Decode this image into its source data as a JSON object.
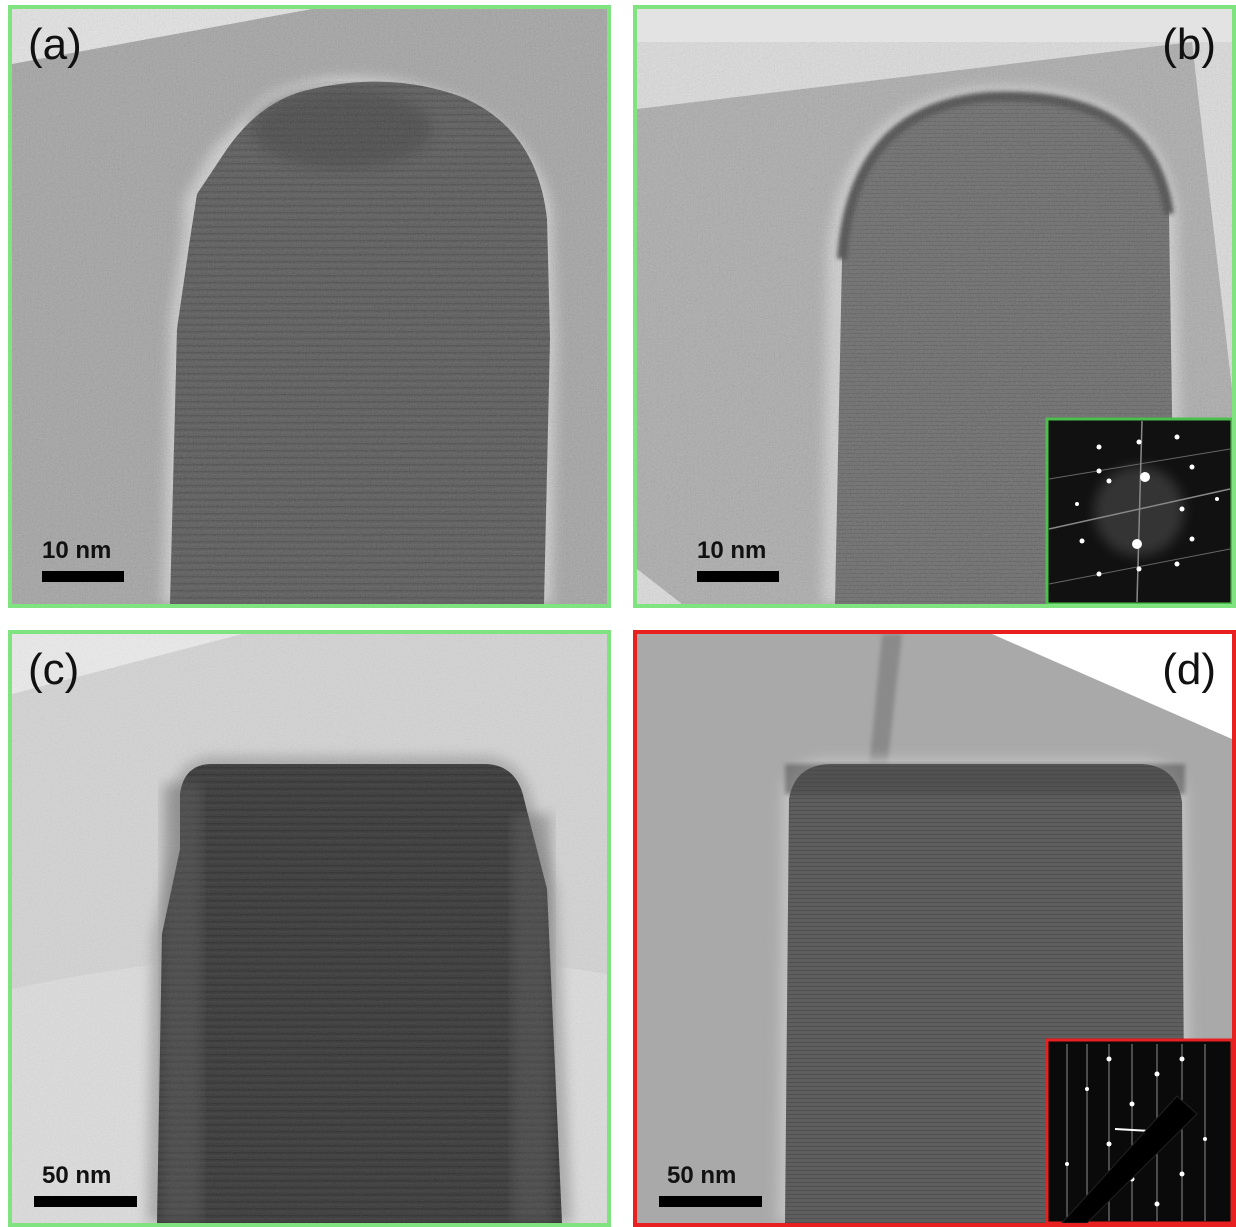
{
  "panels": [
    {
      "label": "(a)",
      "scale_bar": "10 nm"
    },
    {
      "label": "(b)",
      "scale_bar": "10 nm"
    },
    {
      "label": "(c)",
      "scale_bar": "50 nm"
    },
    {
      "label": "(d)",
      "scale_bar": "50 nm"
    }
  ]
}
